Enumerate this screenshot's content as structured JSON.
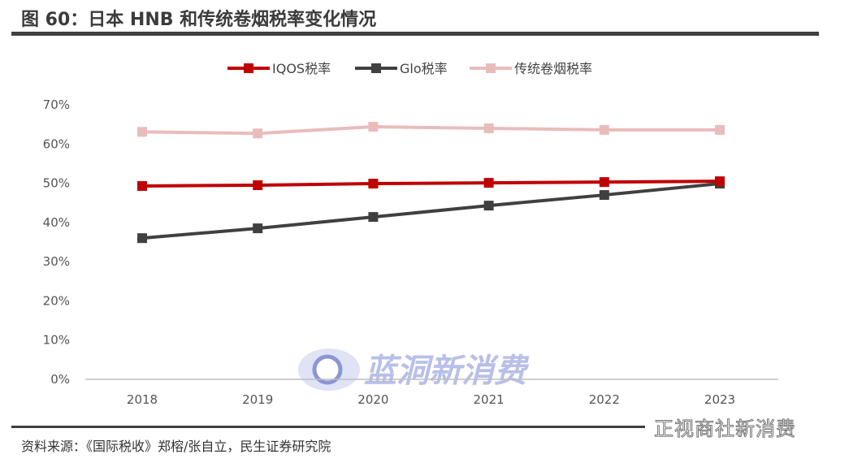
{
  "title": "图 60：日本 HNB 和传统卷烟税率变化情况",
  "source": "资料来源：《国际税收》郑榕/张自立，民生证券研究院",
  "watermark": "正视商社新消费",
  "center_watermark": "蓝洞新消费",
  "chart_data": {
    "type": "line",
    "categories": [
      "2018",
      "2019",
      "2020",
      "2021",
      "2022",
      "2023"
    ],
    "ylim": [
      0,
      70
    ],
    "yticks": [
      "0%",
      "10%",
      "20%",
      "30%",
      "40%",
      "50%",
      "60%",
      "70%"
    ],
    "grid": false,
    "legend_position": "top",
    "series": [
      {
        "name": "IQOS税率",
        "color": "#c00000",
        "values": [
          49.3,
          49.5,
          49.9,
          50.1,
          50.3,
          50.5
        ]
      },
      {
        "name": "Glo税率",
        "color": "#404040",
        "values": [
          36.0,
          38.5,
          41.4,
          44.3,
          47.0,
          49.9
        ]
      },
      {
        "name": "传统卷烟税率",
        "color": "#e9bcbc",
        "values": [
          63.1,
          62.7,
          64.4,
          64.0,
          63.6,
          63.6
        ]
      }
    ]
  }
}
